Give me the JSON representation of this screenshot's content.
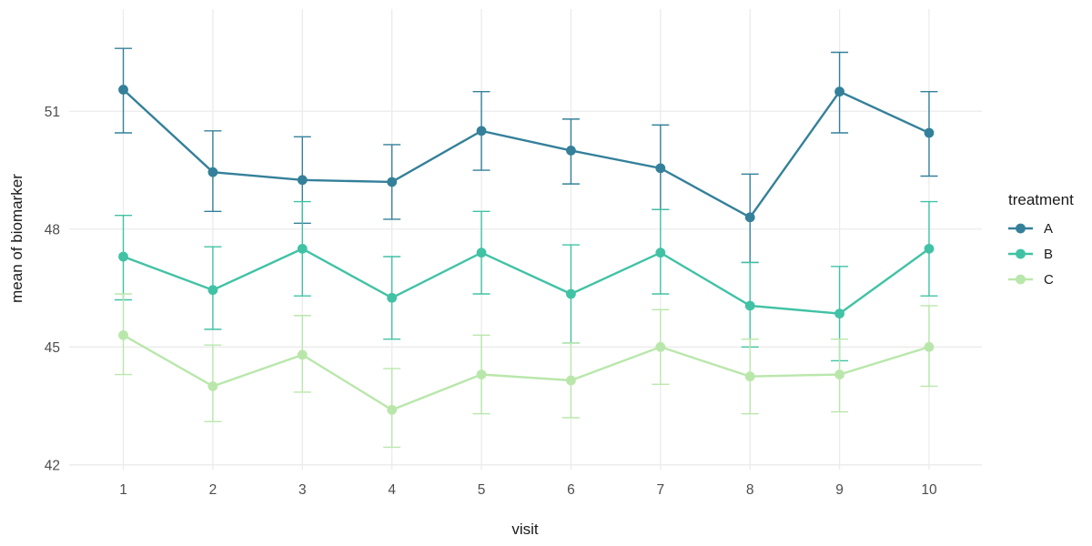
{
  "chart_data": {
    "type": "line",
    "title": "",
    "xlabel": "visit",
    "ylabel": "mean of biomarker",
    "legend_title": "treatment",
    "legend_position": "right",
    "grid": true,
    "error_bars": true,
    "x": [
      1,
      2,
      3,
      4,
      5,
      6,
      7,
      8,
      9,
      10
    ],
    "xticks": [
      1,
      2,
      3,
      4,
      5,
      6,
      7,
      8,
      9,
      10
    ],
    "yticks": [
      42,
      45,
      48,
      51
    ],
    "xlim": [
      0.395,
      10.59
    ],
    "ylim": [
      41.88,
      53.6
    ],
    "colors": {
      "grid": "#ebebeb",
      "tick_text": "#4d4d4d",
      "title_text": "#1a1a1a"
    },
    "series": [
      {
        "name": "A",
        "color": "#34809a",
        "values": [
          51.55,
          49.45,
          49.25,
          49.2,
          50.5,
          50.0,
          49.55,
          48.3,
          51.5,
          50.45
        ],
        "ymax": [
          52.6,
          50.5,
          50.35,
          50.15,
          51.5,
          50.8,
          50.65,
          49.4,
          52.5,
          51.5
        ],
        "ymin": [
          50.45,
          48.45,
          48.15,
          48.25,
          49.5,
          49.15,
          48.5,
          47.15,
          50.45,
          49.35
        ]
      },
      {
        "name": "B",
        "color": "#41c2a5",
        "values": [
          47.3,
          46.45,
          47.5,
          46.25,
          47.4,
          46.35,
          47.4,
          46.05,
          45.85,
          47.5
        ],
        "ymax": [
          48.35,
          47.55,
          48.7,
          47.3,
          48.45,
          47.6,
          48.5,
          47.15,
          47.05,
          48.7
        ],
        "ymin": [
          46.2,
          45.45,
          46.3,
          45.2,
          46.35,
          45.1,
          46.35,
          45.0,
          44.65,
          46.3
        ]
      },
      {
        "name": "C",
        "color": "#b9e7ab",
        "values": [
          45.3,
          44.0,
          44.8,
          43.4,
          44.3,
          44.15,
          45.0,
          44.25,
          44.3,
          45.0
        ],
        "ymax": [
          46.35,
          45.05,
          45.8,
          44.45,
          45.3,
          45.1,
          45.95,
          45.2,
          45.2,
          46.05
        ],
        "ymin": [
          44.3,
          43.1,
          43.85,
          42.45,
          43.3,
          43.2,
          44.05,
          43.3,
          43.35,
          44.0
        ]
      }
    ]
  }
}
